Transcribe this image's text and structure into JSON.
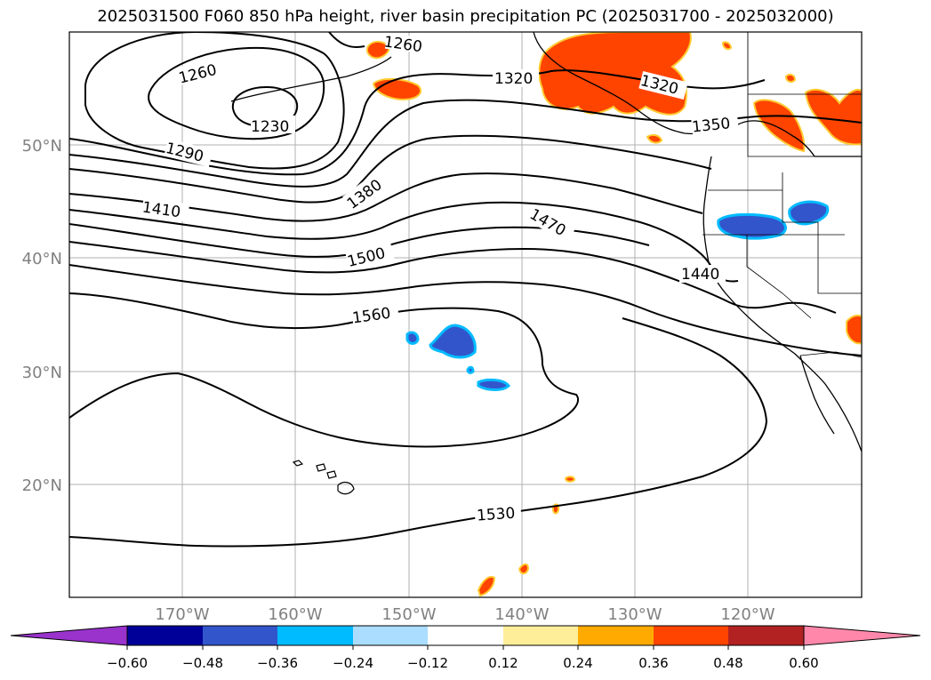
{
  "title": "2025031500 F060 850 hPa height, river basin precipitation PC (2025031700 - 2025032000)",
  "map": {
    "lat_labels": [
      "50°N",
      "40°N",
      "30°N",
      "20°N"
    ],
    "lon_labels": [
      "170°W",
      "160°W",
      "150°W",
      "140°W",
      "130°W",
      "120°W"
    ],
    "contour_labels": [
      "1260",
      "1230",
      "1290",
      "1410",
      "1380",
      "1320",
      "1320",
      "1350",
      "1470",
      "1500",
      "1440",
      "1560",
      "1530",
      "1260"
    ],
    "axis_label_color": "#808080"
  },
  "colorbar": {
    "ticks": [
      "−0.60",
      "−0.48",
      "−0.36",
      "−0.24",
      "−0.12",
      "0.12",
      "0.24",
      "0.36",
      "0.48",
      "0.60"
    ],
    "colors": [
      "#9933cc",
      "#000099",
      "#3355cc",
      "#00bbff",
      "#aaddff",
      "#ffffff",
      "#ffee99",
      "#ffaa00",
      "#ff4400",
      "#b22222",
      "#ff88aa"
    ]
  }
}
